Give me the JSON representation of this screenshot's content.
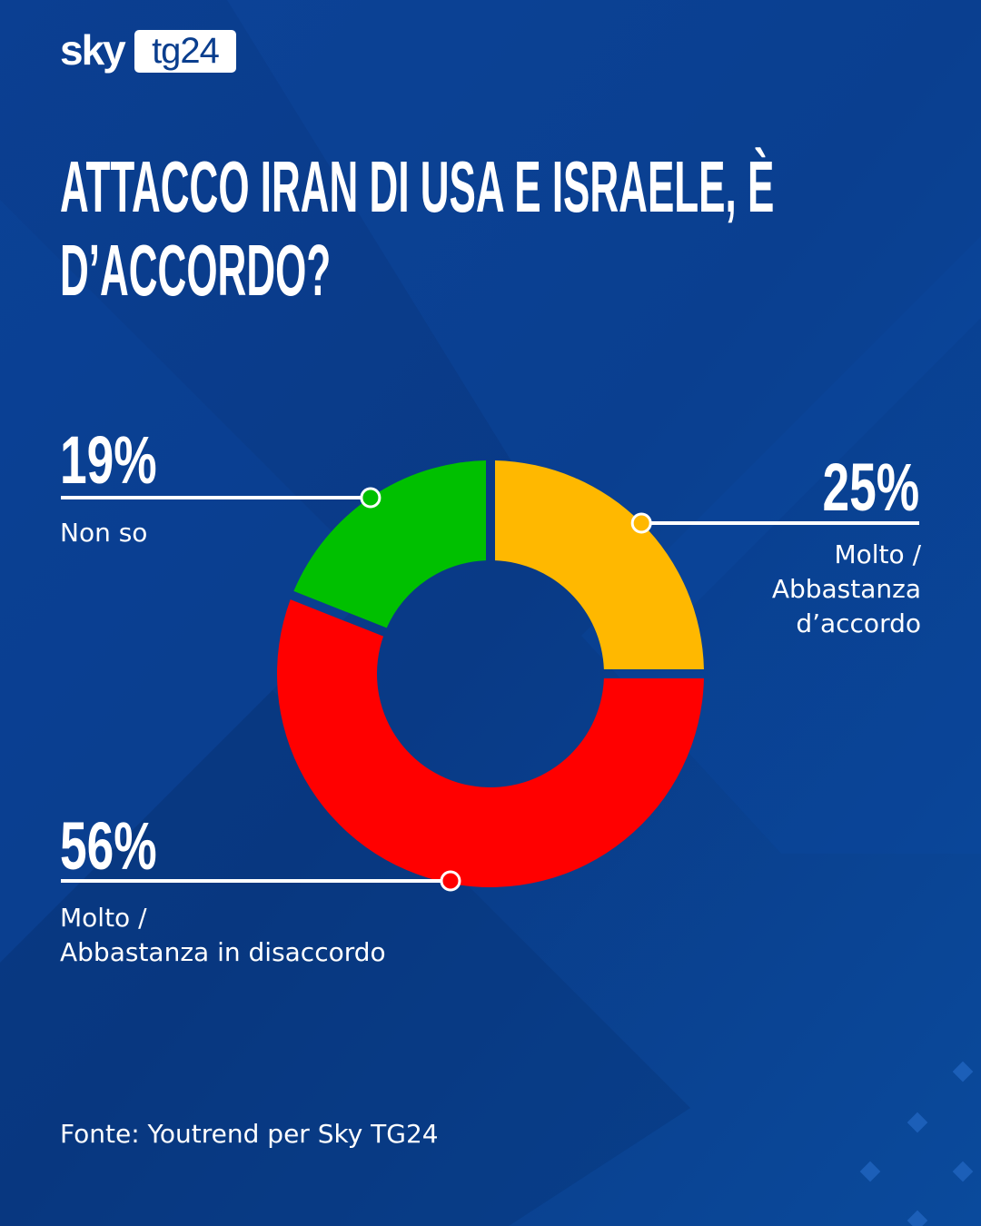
{
  "logo": {
    "brand": "sky",
    "product": "tg24"
  },
  "chart_data": {
    "type": "pie",
    "donut": true,
    "title": "ATTACCO IRAN DI USA E ISRAELE, È D’ACCORDO?",
    "categories": [
      "Molto /\nAbbastanza\nd’accordo",
      "Molto /\nAbbastanza in disaccordo",
      "Non so"
    ],
    "values": [
      25,
      56,
      19
    ],
    "value_labels": [
      "25%",
      "56%",
      "19%"
    ],
    "colors": [
      "#ffb800",
      "#ff0000",
      "#00c000"
    ],
    "source": "Fonte: Youtrend per Sky TG24"
  }
}
